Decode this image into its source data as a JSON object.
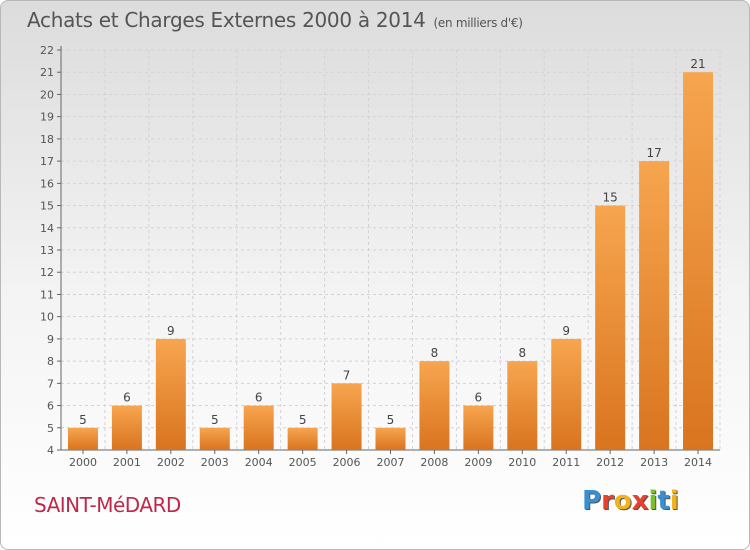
{
  "header": {
    "title": "Achats et Charges Externes 2000 à 2014",
    "subtitle": "(en milliers d'€)"
  },
  "footer": {
    "commune": "SAINT-MéDARD",
    "logo": "Proxiti"
  },
  "colors": {
    "bar_light": "#f7a54f",
    "bar_dark": "#d9741f",
    "title": "#555555",
    "commune": "#c0284a"
  },
  "chart_data": {
    "type": "bar",
    "title": "Achats et Charges Externes 2000 à 2014",
    "subtitle": "(en milliers d'€)",
    "categories": [
      "2000",
      "2001",
      "2002",
      "2003",
      "2004",
      "2005",
      "2006",
      "2007",
      "2008",
      "2009",
      "2010",
      "2011",
      "2012",
      "2013",
      "2014"
    ],
    "values": [
      5,
      6,
      9,
      5,
      6,
      5,
      7,
      5,
      8,
      6,
      8,
      9,
      15,
      17,
      21
    ],
    "ylim": [
      4,
      22
    ],
    "yticks": [
      4,
      5,
      6,
      7,
      8,
      9,
      10,
      11,
      12,
      13,
      14,
      15,
      16,
      17,
      18,
      19,
      20,
      21,
      22
    ],
    "grid": true,
    "xlabel": "",
    "ylabel": ""
  }
}
